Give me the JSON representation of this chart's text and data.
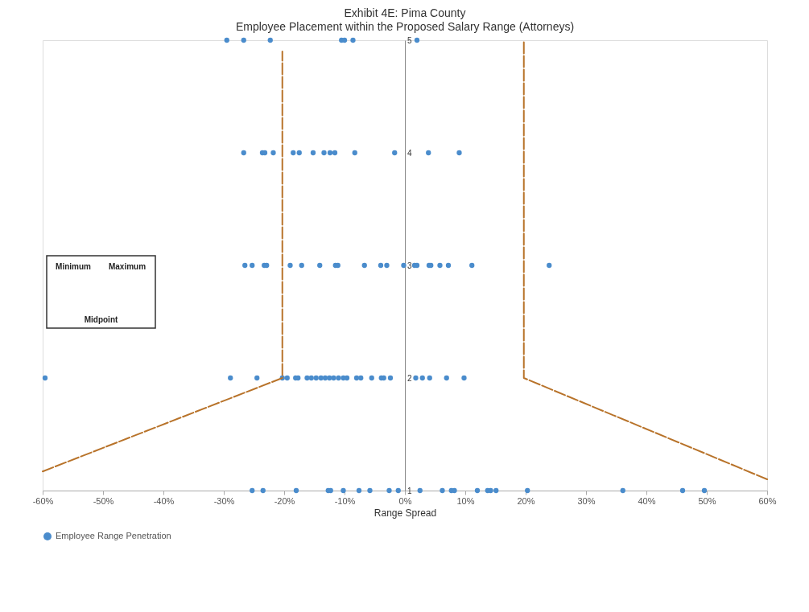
{
  "chart_data": {
    "type": "scatter",
    "title": "Exhibit 4E: Pima County",
    "subtitle": "Employee Placement within the Proposed Salary Range (Attorneys)",
    "xlabel": "Range Spread",
    "xlim": [
      -60,
      60
    ],
    "xticks": [
      {
        "value": -60,
        "label": "-60%"
      },
      {
        "value": -50,
        "label": "-50%"
      },
      {
        "value": -40,
        "label": "-40%"
      },
      {
        "value": -30,
        "label": "-30%"
      },
      {
        "value": -20,
        "label": "-20%"
      },
      {
        "value": -10,
        "label": "-10%"
      },
      {
        "value": 0,
        "label": "0%"
      },
      {
        "value": 10,
        "label": "10%"
      },
      {
        "value": 20,
        "label": "20%"
      },
      {
        "value": 30,
        "label": "30%"
      },
      {
        "value": 40,
        "label": "40%"
      },
      {
        "value": 50,
        "label": "50%"
      },
      {
        "value": 60,
        "label": "60%"
      }
    ],
    "ylim": [
      1,
      5
    ],
    "yticks": [
      1,
      2,
      3,
      4,
      5
    ],
    "grid": false,
    "legend": "bottom",
    "marker": "circle",
    "annotations": [
      "Minimum",
      "Maximum",
      "Midpoint"
    ],
    "series": [
      {
        "name": "Employee Range Penetration",
        "type": "scatter",
        "color": "#4a8ccc",
        "x": [
          -29.5,
          -26.7,
          -22.3,
          -10.5,
          -10.0,
          -8.6,
          2.0,
          -26.7,
          -23.6,
          -23.2,
          -21.8,
          -18.5,
          -17.5,
          -15.2,
          -13.4,
          -12.4,
          -11.6,
          -8.3,
          -1.7,
          3.9,
          9.0,
          -26.5,
          -25.3,
          -23.3,
          -22.9,
          -19.0,
          -17.1,
          -14.1,
          -11.5,
          -11.1,
          -6.7,
          -4.0,
          -3.0,
          -0.2,
          1.6,
          2.0,
          4.0,
          4.3,
          5.8,
          7.2,
          11.1,
          23.9,
          -59.6,
          -28.9,
          -24.5,
          -20.3,
          -19.5,
          -18.1,
          -17.7,
          -16.2,
          -15.5,
          -14.7,
          -13.9,
          -13.2,
          -12.5,
          -11.8,
          -11.0,
          -10.2,
          -9.6,
          -8.0,
          -7.3,
          -5.5,
          -3.9,
          -3.5,
          -2.4,
          1.8,
          2.9,
          4.1,
          6.9,
          9.8,
          -25.3,
          -23.5,
          -18.0,
          -12.7,
          -12.3,
          -10.2,
          -7.6,
          -5.8,
          -2.6,
          -1.1,
          2.5,
          6.2,
          7.7,
          8.2,
          12.0,
          13.7,
          14.2,
          15.1,
          20.3,
          36.1,
          46.0,
          49.6
        ],
        "values": [
          5,
          5,
          5,
          5,
          5,
          5,
          5,
          4,
          4,
          4,
          4,
          4,
          4,
          4,
          4,
          4,
          4,
          4,
          4,
          4,
          4,
          3,
          3,
          3,
          3,
          3,
          3,
          3,
          3,
          3,
          3,
          3,
          3,
          3,
          3,
          3,
          3,
          3,
          3,
          3,
          3,
          3,
          2,
          2,
          2,
          2,
          2,
          2,
          2,
          2,
          2,
          2,
          2,
          2,
          2,
          2,
          2,
          2,
          2,
          2,
          2,
          2,
          2,
          2,
          2,
          2,
          2,
          2,
          2,
          2,
          1,
          1,
          1,
          1,
          1,
          1,
          1,
          1,
          1,
          1,
          1,
          1,
          1,
          1,
          1,
          1,
          1,
          1,
          1,
          1,
          1,
          1
        ]
      },
      {
        "type": "line",
        "color": "#b8732a",
        "line_style": "dashed",
        "marker": "none",
        "x": [
          -60,
          -20.3,
          -20.3
        ],
        "values": [
          1.17,
          2,
          4.9
        ]
      },
      {
        "type": "line",
        "color": "#b8732a",
        "line_style": "dashed",
        "marker": "none",
        "x": [
          60,
          19.7,
          19.7
        ],
        "values": [
          1.1,
          2,
          5
        ]
      }
    ]
  }
}
